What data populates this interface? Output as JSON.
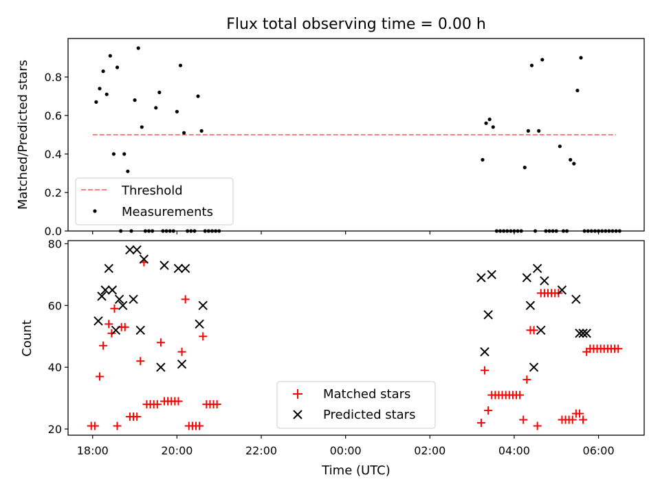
{
  "chart_data": [
    {
      "type": "scatter",
      "title": "Flux total observing time = 0.00 h",
      "ylabel": "Matched/Predicted stars",
      "ylim": [
        0,
        1.0
      ],
      "yticks": [
        "0.0",
        "0.2",
        "0.4",
        "0.6",
        "0.8"
      ],
      "grid": false,
      "legend": {
        "placement": "lower-left",
        "entries": [
          "Threshold",
          "Measurements"
        ]
      },
      "threshold": {
        "name": "Threshold",
        "value": 0.5,
        "x_start": "18:00",
        "x_end": "06:25",
        "color": "#ff7f7f"
      },
      "series": [
        {
          "name": "Measurements",
          "marker": "dot",
          "color": "#000000",
          "x": [
            "18:05",
            "18:10",
            "18:15",
            "18:20",
            "18:25",
            "18:30",
            "18:35",
            "18:40",
            "18:45",
            "18:50",
            "18:55",
            "19:00",
            "19:05",
            "19:10",
            "19:15",
            "19:20",
            "19:25",
            "19:30",
            "19:35",
            "19:40",
            "19:45",
            "19:50",
            "19:55",
            "20:00",
            "20:05",
            "20:10",
            "20:15",
            "20:20",
            "20:25",
            "20:30",
            "20:35",
            "20:40",
            "20:45",
            "20:50",
            "20:55",
            "21:00",
            "03:15",
            "03:20",
            "03:25",
            "03:30",
            "03:35",
            "03:40",
            "03:45",
            "03:50",
            "03:55",
            "04:00",
            "04:05",
            "04:10",
            "04:15",
            "04:20",
            "04:25",
            "04:30",
            "04:35",
            "04:40",
            "04:45",
            "04:50",
            "04:55",
            "05:00",
            "05:05",
            "05:10",
            "05:15",
            "05:20",
            "05:25",
            "05:30",
            "05:35",
            "05:40",
            "05:45",
            "05:50",
            "05:55",
            "06:00",
            "06:05",
            "06:10",
            "06:15",
            "06:20",
            "06:25",
            "06:30"
          ],
          "y": [
            0.67,
            0.74,
            0.83,
            0.71,
            0.91,
            0.4,
            0.85,
            0.0,
            0.4,
            0.31,
            0.0,
            0.68,
            0.95,
            0.54,
            0.0,
            0.0,
            0.0,
            0.64,
            0.72,
            0.0,
            0.0,
            0.0,
            0.0,
            0.62,
            0.86,
            0.51,
            0.0,
            0.0,
            0.0,
            0.7,
            0.52,
            0.0,
            0.0,
            0.0,
            0.0,
            0.0,
            0.37,
            0.56,
            0.58,
            0.54,
            0.0,
            0.0,
            0.0,
            0.0,
            0.0,
            0.0,
            0.0,
            0.0,
            0.33,
            0.52,
            0.86,
            0.0,
            0.52,
            0.89,
            0.0,
            0.0,
            0.0,
            0.0,
            0.44,
            0.0,
            0.0,
            0.37,
            0.35,
            0.73,
            0.9,
            0.0,
            0.0,
            0.0,
            0.0,
            0.0,
            0.0,
            0.0,
            0.0,
            0.0,
            0.0,
            0.0
          ]
        }
      ]
    },
    {
      "type": "scatter",
      "xlabel": "Time (UTC)",
      "ylabel": "Count",
      "ylim": [
        18,
        81
      ],
      "yticks": [
        "20",
        "40",
        "60",
        "80"
      ],
      "xlim": [
        "17:25",
        "07:05"
      ],
      "xticks": [
        "18:00",
        "20:00",
        "22:00",
        "00:00",
        "02:00",
        "04:00",
        "06:00"
      ],
      "grid": false,
      "legend": {
        "placement": "bottom-center",
        "entries": [
          "Matched stars",
          "Predicted stars"
        ]
      },
      "series": [
        {
          "name": "Matched stars",
          "marker": "plus",
          "color": "#ff0000",
          "x": [
            "17:58",
            "18:03",
            "18:10",
            "18:15",
            "18:23",
            "18:27",
            "18:31",
            "18:35",
            "18:41",
            "18:46",
            "18:53",
            "18:58",
            "19:03",
            "19:08",
            "19:13",
            "19:17",
            "19:22",
            "19:27",
            "19:32",
            "19:37",
            "19:42",
            "19:47",
            "19:52",
            "19:57",
            "20:02",
            "20:07",
            "20:12",
            "20:17",
            "20:22",
            "20:27",
            "20:32",
            "20:37",
            "20:42",
            "20:47",
            "20:52",
            "20:57",
            "03:13",
            "03:18",
            "03:23",
            "03:28",
            "03:33",
            "03:38",
            "03:43",
            "03:48",
            "03:53",
            "03:58",
            "04:03",
            "04:08",
            "04:13",
            "04:18",
            "04:23",
            "04:28",
            "04:33",
            "04:38",
            "04:43",
            "04:48",
            "04:53",
            "04:58",
            "05:03",
            "05:08",
            "05:13",
            "05:18",
            "05:23",
            "05:28",
            "05:33",
            "05:38",
            "05:43",
            "05:48",
            "05:53",
            "05:58",
            "06:03",
            "06:08",
            "06:13",
            "06:18",
            "06:23",
            "06:28"
          ],
          "y": [
            21,
            21,
            37,
            47,
            54,
            51,
            59,
            21,
            53,
            53,
            24,
            24,
            24,
            42,
            74,
            28,
            28,
            28,
            28,
            48,
            29,
            29,
            29,
            29,
            29,
            45,
            62,
            21,
            21,
            21,
            21,
            50,
            28,
            28,
            28,
            28,
            22,
            39,
            26,
            31,
            31,
            31,
            31,
            31,
            31,
            31,
            31,
            31,
            23,
            36,
            52,
            52,
            21,
            64,
            64,
            64,
            64,
            64,
            64,
            23,
            23,
            23,
            23,
            25,
            25,
            23,
            45,
            46,
            46,
            46,
            46,
            46,
            46,
            46,
            46,
            46
          ]
        },
        {
          "name": "Predicted stars",
          "marker": "x",
          "color": "#000000",
          "x": [
            "18:08",
            "18:13",
            "18:18",
            "18:23",
            "18:28",
            "18:33",
            "18:38",
            "18:43",
            "18:53",
            "18:58",
            "19:03",
            "19:08",
            "19:13",
            "19:37",
            "19:42",
            "20:02",
            "20:07",
            "20:12",
            "20:32",
            "20:37",
            "03:13",
            "03:18",
            "03:23",
            "03:28",
            "04:18",
            "04:23",
            "04:28",
            "04:33",
            "04:38",
            "04:43",
            "05:08",
            "05:28",
            "05:33",
            "05:38",
            "05:43"
          ],
          "y": [
            55,
            63,
            65,
            72,
            65,
            52,
            62,
            60,
            78,
            62,
            78,
            52,
            75,
            40,
            73,
            72,
            41,
            72,
            54,
            60,
            69,
            45,
            57,
            70,
            69,
            60,
            40,
            72,
            52,
            68,
            65,
            62,
            51,
            51,
            51
          ]
        }
      ]
    }
  ]
}
